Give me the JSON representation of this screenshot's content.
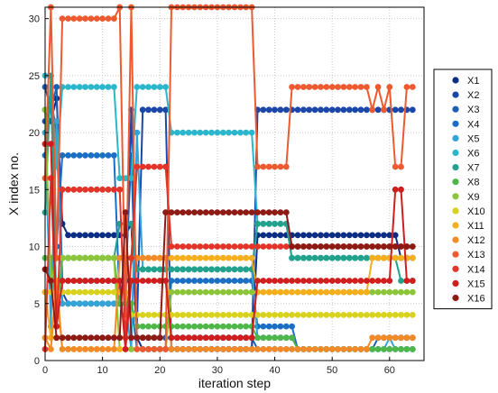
{
  "chart_data": {
    "type": "line",
    "title": "",
    "xlabel": "iteration step",
    "ylabel": "X index no.",
    "xlim": [
      0,
      66
    ],
    "ylim": [
      0,
      31
    ],
    "xticks": [
      "0",
      "10",
      "20",
      "30",
      "40",
      "50",
      "60"
    ],
    "yticks": [
      "0",
      "5",
      "10",
      "15",
      "20",
      "25",
      "30"
    ],
    "grid": "on (dotted)",
    "legend_position": "outside right",
    "marker": "filled circle on every iteration step",
    "series": [
      {
        "name": "X1",
        "color": "#0b2e84",
        "points": [
          [
            0,
            22
          ],
          [
            1,
            21
          ],
          [
            2,
            23
          ],
          [
            3,
            12
          ],
          [
            4,
            11
          ],
          [
            14,
            11
          ],
          [
            15,
            12
          ],
          [
            16,
            2
          ],
          [
            17,
            1
          ],
          [
            36,
            1
          ],
          [
            37,
            11
          ],
          [
            61,
            11
          ],
          [
            62,
            9
          ],
          [
            64,
            9
          ]
        ]
      },
      {
        "name": "X2",
        "color": "#1b48a8",
        "points": [
          [
            0,
            21
          ],
          [
            1,
            23
          ],
          [
            2,
            20
          ],
          [
            3,
            6
          ],
          [
            4,
            5
          ],
          [
            14,
            5
          ],
          [
            15,
            22
          ],
          [
            16,
            3
          ],
          [
            17,
            22
          ],
          [
            21,
            22
          ],
          [
            22,
            1
          ],
          [
            36,
            1
          ],
          [
            37,
            22
          ],
          [
            64,
            22
          ]
        ]
      },
      {
        "name": "X3",
        "color": "#1d5fb4",
        "points": [
          [
            0,
            24
          ],
          [
            1,
            22
          ],
          [
            2,
            24
          ],
          [
            3,
            7
          ],
          [
            4,
            7
          ],
          [
            14,
            7
          ],
          [
            15,
            18
          ],
          [
            16,
            2
          ],
          [
            17,
            2
          ],
          [
            36,
            2
          ],
          [
            37,
            1
          ],
          [
            57,
            1
          ],
          [
            58,
            2
          ],
          [
            64,
            2
          ]
        ]
      },
      {
        "name": "X4",
        "color": "#1a6fc4",
        "points": [
          [
            0,
            18
          ],
          [
            1,
            23
          ],
          [
            2,
            10
          ],
          [
            3,
            18
          ],
          [
            12,
            18
          ],
          [
            13,
            5
          ],
          [
            15,
            5
          ],
          [
            16,
            1
          ],
          [
            21,
            1
          ],
          [
            22,
            7
          ],
          [
            36,
            7
          ],
          [
            37,
            3
          ],
          [
            43,
            3
          ],
          [
            44,
            1
          ],
          [
            64,
            1
          ]
        ]
      },
      {
        "name": "X5",
        "color": "#33a4d8",
        "points": [
          [
            0,
            20
          ],
          [
            1,
            3
          ],
          [
            2,
            21
          ],
          [
            3,
            5
          ],
          [
            14,
            5
          ],
          [
            15,
            1
          ],
          [
            16,
            20
          ],
          [
            17,
            8
          ],
          [
            36,
            8
          ],
          [
            37,
            2
          ],
          [
            43,
            2
          ],
          [
            44,
            1
          ],
          [
            59,
            1
          ],
          [
            60,
            2
          ],
          [
            61,
            1
          ],
          [
            64,
            1
          ]
        ]
      },
      {
        "name": "X6",
        "color": "#2cb6cc",
        "points": [
          [
            0,
            25
          ],
          [
            1,
            25
          ],
          [
            2,
            17
          ],
          [
            3,
            24
          ],
          [
            12,
            24
          ],
          [
            13,
            16
          ],
          [
            15,
            16
          ],
          [
            16,
            24
          ],
          [
            21,
            24
          ],
          [
            22,
            20
          ],
          [
            36,
            20
          ],
          [
            37,
            12
          ],
          [
            42,
            12
          ],
          [
            43,
            9
          ],
          [
            64,
            9
          ]
        ]
      },
      {
        "name": "X7",
        "color": "#22a28c",
        "points": [
          [
            0,
            13
          ],
          [
            1,
            25
          ],
          [
            2,
            4
          ],
          [
            3,
            9
          ],
          [
            12,
            9
          ],
          [
            13,
            12
          ],
          [
            15,
            12
          ],
          [
            16,
            8
          ],
          [
            17,
            8
          ],
          [
            36,
            8
          ],
          [
            37,
            12
          ],
          [
            42,
            12
          ],
          [
            43,
            9
          ],
          [
            61,
            9
          ],
          [
            62,
            7
          ],
          [
            64,
            7
          ]
        ]
      },
      {
        "name": "X8",
        "color": "#4fb64a",
        "points": [
          [
            0,
            9
          ],
          [
            1,
            9
          ],
          [
            2,
            4
          ],
          [
            3,
            9
          ],
          [
            12,
            9
          ],
          [
            13,
            5
          ],
          [
            15,
            5
          ],
          [
            16,
            3
          ],
          [
            21,
            3
          ],
          [
            22,
            3
          ],
          [
            36,
            3
          ],
          [
            37,
            2
          ],
          [
            43,
            2
          ],
          [
            44,
            1
          ],
          [
            64,
            1
          ]
        ]
      },
      {
        "name": "X9",
        "color": "#8cc43a",
        "points": [
          [
            0,
            22
          ],
          [
            1,
            7
          ],
          [
            2,
            9
          ],
          [
            3,
            9
          ],
          [
            12,
            9
          ],
          [
            13,
            1
          ],
          [
            15,
            1
          ],
          [
            16,
            1
          ],
          [
            21,
            1
          ],
          [
            22,
            6
          ],
          [
            36,
            6
          ],
          [
            37,
            6
          ],
          [
            64,
            6
          ]
        ]
      },
      {
        "name": "X10",
        "color": "#d8d21c",
        "points": [
          [
            0,
            6
          ],
          [
            1,
            6
          ],
          [
            2,
            6
          ],
          [
            3,
            6
          ],
          [
            14,
            6
          ],
          [
            15,
            4
          ],
          [
            16,
            4
          ],
          [
            21,
            4
          ],
          [
            22,
            4
          ],
          [
            64,
            4
          ]
        ]
      },
      {
        "name": "X11",
        "color": "#f5ae1c",
        "points": [
          [
            0,
            6
          ],
          [
            1,
            2
          ],
          [
            2,
            6
          ],
          [
            3,
            1
          ],
          [
            14,
            1
          ],
          [
            15,
            9
          ],
          [
            21,
            9
          ],
          [
            22,
            9
          ],
          [
            36,
            9
          ],
          [
            37,
            6
          ],
          [
            56,
            6
          ],
          [
            57,
            9
          ],
          [
            64,
            9
          ]
        ]
      },
      {
        "name": "X12",
        "color": "#f28a28",
        "points": [
          [
            0,
            2
          ],
          [
            1,
            1
          ],
          [
            2,
            7
          ],
          [
            3,
            1
          ],
          [
            12,
            1
          ],
          [
            13,
            9
          ],
          [
            15,
            9
          ],
          [
            16,
            9
          ],
          [
            21,
            9
          ],
          [
            22,
            1
          ],
          [
            36,
            1
          ],
          [
            37,
            1
          ],
          [
            56,
            1
          ],
          [
            57,
            2
          ],
          [
            64,
            2
          ]
        ]
      },
      {
        "name": "X13",
        "color": "#ee5a30",
        "points": [
          [
            0,
            16
          ],
          [
            1,
            31
          ],
          [
            2,
            9
          ],
          [
            3,
            30
          ],
          [
            12,
            30
          ],
          [
            13,
            31
          ],
          [
            14,
            4
          ],
          [
            15,
            31
          ],
          [
            16,
            1
          ],
          [
            21,
            1
          ],
          [
            22,
            31
          ],
          [
            36,
            31
          ],
          [
            37,
            17
          ],
          [
            42,
            17
          ],
          [
            43,
            24
          ],
          [
            56,
            24
          ],
          [
            57,
            22
          ],
          [
            58,
            24
          ],
          [
            59,
            22
          ],
          [
            60,
            24
          ],
          [
            61,
            17
          ],
          [
            62,
            17
          ],
          [
            63,
            24
          ],
          [
            64,
            24
          ]
        ]
      },
      {
        "name": "X14",
        "color": "#e3342a",
        "points": [
          [
            0,
            1
          ],
          [
            1,
            16
          ],
          [
            2,
            3
          ],
          [
            3,
            15
          ],
          [
            12,
            15
          ],
          [
            13,
            15
          ],
          [
            14,
            2
          ],
          [
            15,
            9
          ],
          [
            16,
            17
          ],
          [
            21,
            17
          ],
          [
            22,
            10
          ],
          [
            36,
            10
          ],
          [
            37,
            10
          ],
          [
            64,
            10
          ]
        ]
      },
      {
        "name": "X15",
        "color": "#d01e1e",
        "points": [
          [
            0,
            19
          ],
          [
            1,
            19
          ],
          [
            2,
            3
          ],
          [
            3,
            7
          ],
          [
            12,
            7
          ],
          [
            13,
            7
          ],
          [
            14,
            1
          ],
          [
            15,
            7
          ],
          [
            21,
            7
          ],
          [
            22,
            2
          ],
          [
            36,
            2
          ],
          [
            37,
            7
          ],
          [
            60,
            7
          ],
          [
            61,
            15
          ],
          [
            62,
            15
          ],
          [
            63,
            7
          ],
          [
            64,
            7
          ]
        ]
      },
      {
        "name": "X16",
        "color": "#8e1a14",
        "points": [
          [
            0,
            8
          ],
          [
            1,
            7
          ],
          [
            2,
            2
          ],
          [
            3,
            2
          ],
          [
            12,
            2
          ],
          [
            13,
            2
          ],
          [
            14,
            13
          ],
          [
            15,
            2
          ],
          [
            16,
            2
          ],
          [
            20,
            2
          ],
          [
            21,
            13
          ],
          [
            36,
            13
          ],
          [
            37,
            13
          ],
          [
            42,
            13
          ],
          [
            43,
            10
          ],
          [
            64,
            10
          ]
        ]
      }
    ]
  }
}
